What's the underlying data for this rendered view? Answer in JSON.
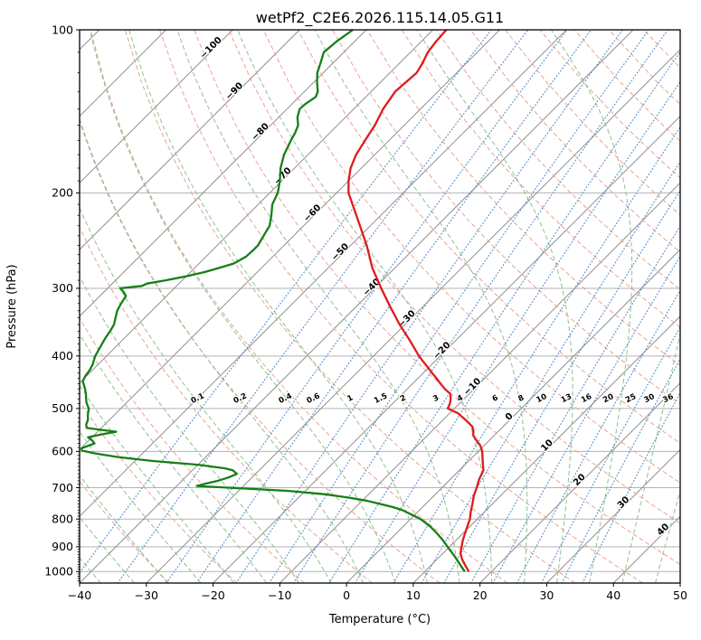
{
  "title": "wetPf2_C2E6.2026.115.14.05.G11",
  "axes": {
    "xlabel": "Temperature (°C)",
    "ylabel": "Pressure (hPa)",
    "xlim": [
      -40,
      50
    ],
    "p_top": 100,
    "p_bottom": 1050,
    "x_ticks": [
      -40,
      -30,
      -20,
      -10,
      0,
      10,
      20,
      30,
      40,
      50
    ],
    "y_ticks": [
      100,
      200,
      300,
      400,
      500,
      600,
      700,
      800,
      900,
      1000
    ]
  },
  "chart_data": {
    "type": "line",
    "variant": "skew-t-log-p",
    "skew_note": "isotherms skewed 45deg, 1px right per px up; pressure on log axis",
    "series": [
      {
        "name": "temperature",
        "units": "hPa, °C",
        "points": [
          [
            1000,
            16.6
          ],
          [
            975,
            15.2
          ],
          [
            950,
            13.8
          ],
          [
            925,
            12.6
          ],
          [
            900,
            11.8
          ],
          [
            875,
            11.0
          ],
          [
            850,
            10.3
          ],
          [
            825,
            9.6
          ],
          [
            800,
            8.9
          ],
          [
            775,
            7.9
          ],
          [
            750,
            7.0
          ],
          [
            725,
            6.0
          ],
          [
            700,
            5.2
          ],
          [
            675,
            4.3
          ],
          [
            650,
            3.6
          ],
          [
            630,
            2.4
          ],
          [
            610,
            1.2
          ],
          [
            600,
            0.6
          ],
          [
            585,
            -0.6
          ],
          [
            570,
            -2.2
          ],
          [
            560,
            -3.2
          ],
          [
            550,
            -3.8
          ],
          [
            540,
            -4.6
          ],
          [
            525,
            -6.6
          ],
          [
            510,
            -8.8
          ],
          [
            500,
            -11.0
          ],
          [
            490,
            -11.4
          ],
          [
            480,
            -12.0
          ],
          [
            470,
            -12.8
          ],
          [
            460,
            -14.4
          ],
          [
            450,
            -15.8
          ],
          [
            440,
            -17.2
          ],
          [
            425,
            -19.4
          ],
          [
            400,
            -23.2
          ],
          [
            375,
            -26.8
          ],
          [
            350,
            -30.8
          ],
          [
            325,
            -34.8
          ],
          [
            300,
            -39.0
          ],
          [
            275,
            -43.4
          ],
          [
            250,
            -47.6
          ],
          [
            225,
            -52.6
          ],
          [
            200,
            -58.2
          ],
          [
            190,
            -60.0
          ],
          [
            180,
            -61.6
          ],
          [
            170,
            -62.8
          ],
          [
            160,
            -63.6
          ],
          [
            150,
            -64.4
          ],
          [
            140,
            -65.6
          ],
          [
            130,
            -66.4
          ],
          [
            120,
            -66.0
          ],
          [
            115,
            -66.6
          ],
          [
            110,
            -67.4
          ],
          [
            105,
            -67.8
          ],
          [
            100,
            -68.0
          ]
        ]
      },
      {
        "name": "dewpoint",
        "units": "hPa, °C",
        "points": [
          [
            1000,
            16.0
          ],
          [
            975,
            14.5
          ],
          [
            950,
            13.0
          ],
          [
            925,
            11.4
          ],
          [
            900,
            9.7
          ],
          [
            875,
            8.0
          ],
          [
            850,
            6.1
          ],
          [
            825,
            4.0
          ],
          [
            800,
            1.5
          ],
          [
            785,
            -0.5
          ],
          [
            770,
            -2.6
          ],
          [
            760,
            -4.5
          ],
          [
            750,
            -6.9
          ],
          [
            740,
            -9.3
          ],
          [
            730,
            -12.6
          ],
          [
            720,
            -16.5
          ],
          [
            710,
            -22.4
          ],
          [
            702,
            -30.0
          ],
          [
            695,
            -37.0
          ],
          [
            688,
            -36.0
          ],
          [
            680,
            -34.6
          ],
          [
            670,
            -33.5
          ],
          [
            660,
            -32.8
          ],
          [
            650,
            -34.0
          ],
          [
            645,
            -35.4
          ],
          [
            635,
            -40.0
          ],
          [
            625,
            -47.3
          ],
          [
            615,
            -53.0
          ],
          [
            605,
            -57.2
          ],
          [
            598,
            -59.5
          ],
          [
            592,
            -59.9
          ],
          [
            585,
            -59.2
          ],
          [
            580,
            -58.7
          ],
          [
            572,
            -59.6
          ],
          [
            565,
            -60.6
          ],
          [
            558,
            -59.0
          ],
          [
            552,
            -57.2
          ],
          [
            548,
            -59.5
          ],
          [
            543,
            -62.2
          ],
          [
            535,
            -62.8
          ],
          [
            525,
            -63.2
          ],
          [
            515,
            -63.9
          ],
          [
            505,
            -64.5
          ],
          [
            500,
            -64.8
          ],
          [
            488,
            -66.0
          ],
          [
            478,
            -66.8
          ],
          [
            470,
            -67.4
          ],
          [
            460,
            -68.3
          ],
          [
            450,
            -69.3
          ],
          [
            445,
            -69.8
          ],
          [
            435,
            -70.2
          ],
          [
            425,
            -70.4
          ],
          [
            415,
            -70.8
          ],
          [
            405,
            -71.4
          ],
          [
            400,
            -71.7
          ],
          [
            390,
            -72.1
          ],
          [
            380,
            -72.5
          ],
          [
            370,
            -72.9
          ],
          [
            360,
            -73.2
          ],
          [
            350,
            -73.6
          ],
          [
            340,
            -74.4
          ],
          [
            330,
            -75.2
          ],
          [
            320,
            -75.7
          ],
          [
            310,
            -76.1
          ],
          [
            305,
            -77.0
          ],
          [
            300,
            -78.1
          ],
          [
            297,
            -75.2
          ],
          [
            294,
            -74.8
          ],
          [
            290,
            -72.5
          ],
          [
            285,
            -70.0
          ],
          [
            280,
            -67.9
          ],
          [
            275,
            -66.3
          ],
          [
            270,
            -64.8
          ],
          [
            262,
            -64.0
          ],
          [
            255,
            -63.9
          ],
          [
            250,
            -63.9
          ],
          [
            240,
            -64.5
          ],
          [
            230,
            -65.1
          ],
          [
            220,
            -66.4
          ],
          [
            210,
            -67.9
          ],
          [
            200,
            -68.8
          ],
          [
            190,
            -70.3
          ],
          [
            180,
            -72.1
          ],
          [
            170,
            -73.6
          ],
          [
            160,
            -74.7
          ],
          [
            155,
            -75.2
          ],
          [
            150,
            -75.9
          ],
          [
            145,
            -77.2
          ],
          [
            140,
            -78.1
          ],
          [
            137,
            -78.0
          ],
          [
            133,
            -77.5
          ],
          [
            130,
            -78.0
          ],
          [
            125,
            -79.5
          ],
          [
            120,
            -80.9
          ],
          [
            115,
            -81.9
          ],
          [
            110,
            -83.0
          ],
          [
            105,
            -82.7
          ],
          [
            100,
            -82.0
          ]
        ]
      }
    ],
    "isotherms": {
      "min": -160,
      "max": 50,
      "step": 10,
      "labels": [
        [
          -100,
          55
        ],
        [
          -90,
          103
        ],
        [
          -80,
          148
        ],
        [
          -70,
          197
        ],
        [
          -60,
          238
        ],
        [
          -50,
          281
        ],
        [
          -40,
          320
        ],
        [
          -30,
          355
        ],
        [
          -20,
          390
        ],
        [
          -10,
          430
        ],
        [
          0,
          463
        ],
        [
          10,
          495
        ],
        [
          20,
          533
        ],
        [
          30,
          558
        ],
        [
          40,
          588
        ]
      ]
    },
    "dry_adiabats": {
      "theta_min_c": -30,
      "theta_max_c": 200,
      "step_c": 10
    },
    "moist_adiabats": {
      "t0_min_c": -40,
      "t0_max_c": 45,
      "step_c": 5
    },
    "mixing_ratios": {
      "values_g_kg": [
        0.1,
        0.2,
        0.4,
        0.6,
        1,
        1.5,
        2,
        3,
        4,
        6,
        8,
        10,
        13,
        16,
        20,
        25,
        30,
        36
      ]
    },
    "colors": {
      "hgrid": "#b3b3b3",
      "isotherm": "#8e8e8e",
      "dry_adiabat": "#e7a397",
      "moist_adiabat": "#8fbf90",
      "mixing_ratio": "#5b92cc",
      "temperature": "#e01b1b",
      "dewpoint": "#157f17",
      "label_neg": "#2e72b3",
      "label_zero": "#636363",
      "label_pos": "#c53a3a",
      "frame": "#000000"
    }
  }
}
